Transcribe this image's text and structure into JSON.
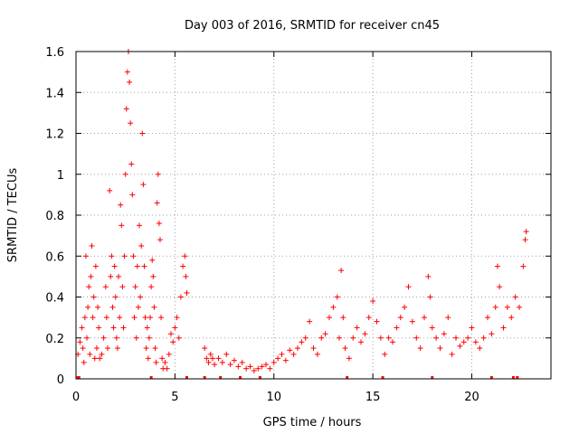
{
  "chart_data": {
    "type": "scatter",
    "title": "Day 003 of 2016, SRMTID for receiver cn45",
    "xlabel": "GPS time / hours",
    "ylabel": "SRMTID / TECUs",
    "xlim": [
      0,
      24
    ],
    "ylim": [
      0,
      1.6
    ],
    "xticks": [
      0,
      5,
      10,
      15,
      20
    ],
    "yticks": [
      0,
      0.2,
      0.4,
      0.6,
      0.8,
      1,
      1.2,
      1.4,
      1.6
    ],
    "xtick_labels": [
      "0",
      "5",
      "10",
      "15",
      "20"
    ],
    "ytick_labels": [
      "0",
      "0.2",
      "0.4",
      "0.6",
      "0.8",
      "1",
      "1.2",
      "1.4",
      "1.6"
    ],
    "grid": true,
    "marker": "+",
    "color": "#ff0000",
    "series": [
      {
        "name": "SRMTID",
        "points": [
          [
            0.1,
            0.12
          ],
          [
            0.2,
            0.18
          ],
          [
            0.3,
            0.25
          ],
          [
            0.35,
            0.15
          ],
          [
            0.4,
            0.08
          ],
          [
            0.45,
            0.3
          ],
          [
            0.5,
            0.6
          ],
          [
            0.55,
            0.2
          ],
          [
            0.6,
            0.35
          ],
          [
            0.65,
            0.45
          ],
          [
            0.7,
            0.12
          ],
          [
            0.75,
            0.5
          ],
          [
            0.8,
            0.65
          ],
          [
            0.85,
            0.3
          ],
          [
            0.9,
            0.4
          ],
          [
            0.95,
            0.1
          ],
          [
            1.0,
            0.55
          ],
          [
            1.05,
            0.15
          ],
          [
            1.1,
            0.35
          ],
          [
            1.15,
            0.25
          ],
          [
            1.2,
            0.1
          ],
          [
            1.3,
            0.12
          ],
          [
            1.4,
            0.2
          ],
          [
            1.5,
            0.45
          ],
          [
            1.55,
            0.3
          ],
          [
            1.6,
            0.15
          ],
          [
            1.7,
            0.92
          ],
          [
            1.75,
            0.5
          ],
          [
            1.8,
            0.6
          ],
          [
            1.85,
            0.35
          ],
          [
            1.9,
            0.25
          ],
          [
            1.95,
            0.55
          ],
          [
            2.0,
            0.4
          ],
          [
            2.05,
            0.2
          ],
          [
            2.1,
            0.15
          ],
          [
            2.15,
            0.5
          ],
          [
            2.2,
            0.3
          ],
          [
            2.25,
            0.85
          ],
          [
            2.3,
            0.75
          ],
          [
            2.35,
            0.45
          ],
          [
            2.4,
            0.25
          ],
          [
            2.45,
            0.6
          ],
          [
            2.5,
            1.0
          ],
          [
            2.55,
            1.32
          ],
          [
            2.6,
            1.5
          ],
          [
            2.65,
            1.6
          ],
          [
            2.7,
            1.45
          ],
          [
            2.75,
            1.25
          ],
          [
            2.8,
            1.05
          ],
          [
            2.85,
            0.9
          ],
          [
            2.9,
            0.6
          ],
          [
            2.95,
            0.3
          ],
          [
            3.0,
            0.45
          ],
          [
            3.05,
            0.2
          ],
          [
            3.1,
            0.55
          ],
          [
            3.15,
            0.35
          ],
          [
            3.2,
            0.75
          ],
          [
            3.25,
            0.4
          ],
          [
            3.3,
            0.65
          ],
          [
            3.35,
            1.2
          ],
          [
            3.4,
            0.95
          ],
          [
            3.45,
            0.55
          ],
          [
            3.5,
            0.3
          ],
          [
            3.55,
            0.15
          ],
          [
            3.6,
            0.25
          ],
          [
            3.65,
            0.1
          ],
          [
            3.7,
            0.2
          ],
          [
            3.75,
            0.3
          ],
          [
            3.8,
            0.45
          ],
          [
            3.85,
            0.58
          ],
          [
            3.9,
            0.5
          ],
          [
            3.95,
            0.35
          ],
          [
            4.0,
            0.15
          ],
          [
            4.05,
            0.08
          ],
          [
            4.1,
            0.86
          ],
          [
            4.15,
            1.0
          ],
          [
            4.2,
            0.76
          ],
          [
            4.25,
            0.68
          ],
          [
            4.3,
            0.3
          ],
          [
            4.35,
            0.1
          ],
          [
            4.4,
            0.05
          ],
          [
            4.5,
            0.08
          ],
          [
            4.6,
            0.05
          ],
          [
            4.7,
            0.12
          ],
          [
            4.8,
            0.22
          ],
          [
            4.9,
            0.18
          ],
          [
            5.0,
            0.25
          ],
          [
            5.1,
            0.3
          ],
          [
            5.2,
            0.2
          ],
          [
            5.3,
            0.4
          ],
          [
            5.4,
            0.55
          ],
          [
            5.5,
            0.6
          ],
          [
            5.55,
            0.5
          ],
          [
            5.6,
            0.42
          ],
          [
            6.5,
            0.15
          ],
          [
            6.6,
            0.1
          ],
          [
            6.7,
            0.08
          ],
          [
            6.8,
            0.12
          ],
          [
            6.9,
            0.1
          ],
          [
            7.0,
            0.07
          ],
          [
            7.2,
            0.1
          ],
          [
            7.4,
            0.08
          ],
          [
            7.6,
            0.12
          ],
          [
            7.8,
            0.07
          ],
          [
            8.0,
            0.09
          ],
          [
            8.2,
            0.06
          ],
          [
            8.4,
            0.08
          ],
          [
            8.6,
            0.05
          ],
          [
            8.8,
            0.06
          ],
          [
            9.0,
            0.04
          ],
          [
            9.2,
            0.05
          ],
          [
            9.4,
            0.06
          ],
          [
            9.6,
            0.07
          ],
          [
            9.8,
            0.05
          ],
          [
            10.0,
            0.08
          ],
          [
            10.2,
            0.1
          ],
          [
            10.4,
            0.12
          ],
          [
            10.6,
            0.09
          ],
          [
            10.8,
            0.14
          ],
          [
            11.0,
            0.12
          ],
          [
            11.2,
            0.15
          ],
          [
            11.4,
            0.18
          ],
          [
            11.6,
            0.2
          ],
          [
            11.8,
            0.28
          ],
          [
            12.0,
            0.15
          ],
          [
            12.2,
            0.12
          ],
          [
            12.4,
            0.2
          ],
          [
            12.6,
            0.22
          ],
          [
            12.8,
            0.3
          ],
          [
            13.0,
            0.35
          ],
          [
            13.2,
            0.4
          ],
          [
            13.3,
            0.2
          ],
          [
            13.4,
            0.53
          ],
          [
            13.5,
            0.3
          ],
          [
            13.6,
            0.15
          ],
          [
            13.8,
            0.1
          ],
          [
            14.0,
            0.2
          ],
          [
            14.2,
            0.25
          ],
          [
            14.4,
            0.18
          ],
          [
            14.6,
            0.22
          ],
          [
            14.8,
            0.3
          ],
          [
            15.0,
            0.38
          ],
          [
            15.2,
            0.28
          ],
          [
            15.4,
            0.2
          ],
          [
            15.6,
            0.12
          ],
          [
            15.8,
            0.2
          ],
          [
            16.0,
            0.18
          ],
          [
            16.2,
            0.25
          ],
          [
            16.4,
            0.3
          ],
          [
            16.6,
            0.35
          ],
          [
            16.8,
            0.45
          ],
          [
            17.0,
            0.28
          ],
          [
            17.2,
            0.2
          ],
          [
            17.4,
            0.15
          ],
          [
            17.6,
            0.3
          ],
          [
            17.8,
            0.5
          ],
          [
            17.9,
            0.4
          ],
          [
            18.0,
            0.25
          ],
          [
            18.2,
            0.2
          ],
          [
            18.4,
            0.15
          ],
          [
            18.6,
            0.22
          ],
          [
            18.8,
            0.3
          ],
          [
            19.0,
            0.12
          ],
          [
            19.2,
            0.2
          ],
          [
            19.4,
            0.16
          ],
          [
            19.6,
            0.18
          ],
          [
            19.8,
            0.2
          ],
          [
            20.0,
            0.25
          ],
          [
            20.2,
            0.18
          ],
          [
            20.4,
            0.15
          ],
          [
            20.6,
            0.2
          ],
          [
            20.8,
            0.3
          ],
          [
            21.0,
            0.22
          ],
          [
            21.2,
            0.35
          ],
          [
            21.3,
            0.55
          ],
          [
            21.4,
            0.45
          ],
          [
            21.6,
            0.25
          ],
          [
            21.8,
            0.35
          ],
          [
            22.0,
            0.3
          ],
          [
            22.2,
            0.4
          ],
          [
            22.4,
            0.35
          ],
          [
            22.6,
            0.55
          ],
          [
            22.7,
            0.68
          ],
          [
            22.75,
            0.72
          ]
        ]
      }
    ],
    "rug_x": [
      0.1,
      0.15,
      3.8,
      5.6,
      6.5,
      7.3,
      8.3,
      9.3,
      13.7,
      15.5,
      18.0,
      21.0,
      22.1,
      22.3
    ]
  }
}
